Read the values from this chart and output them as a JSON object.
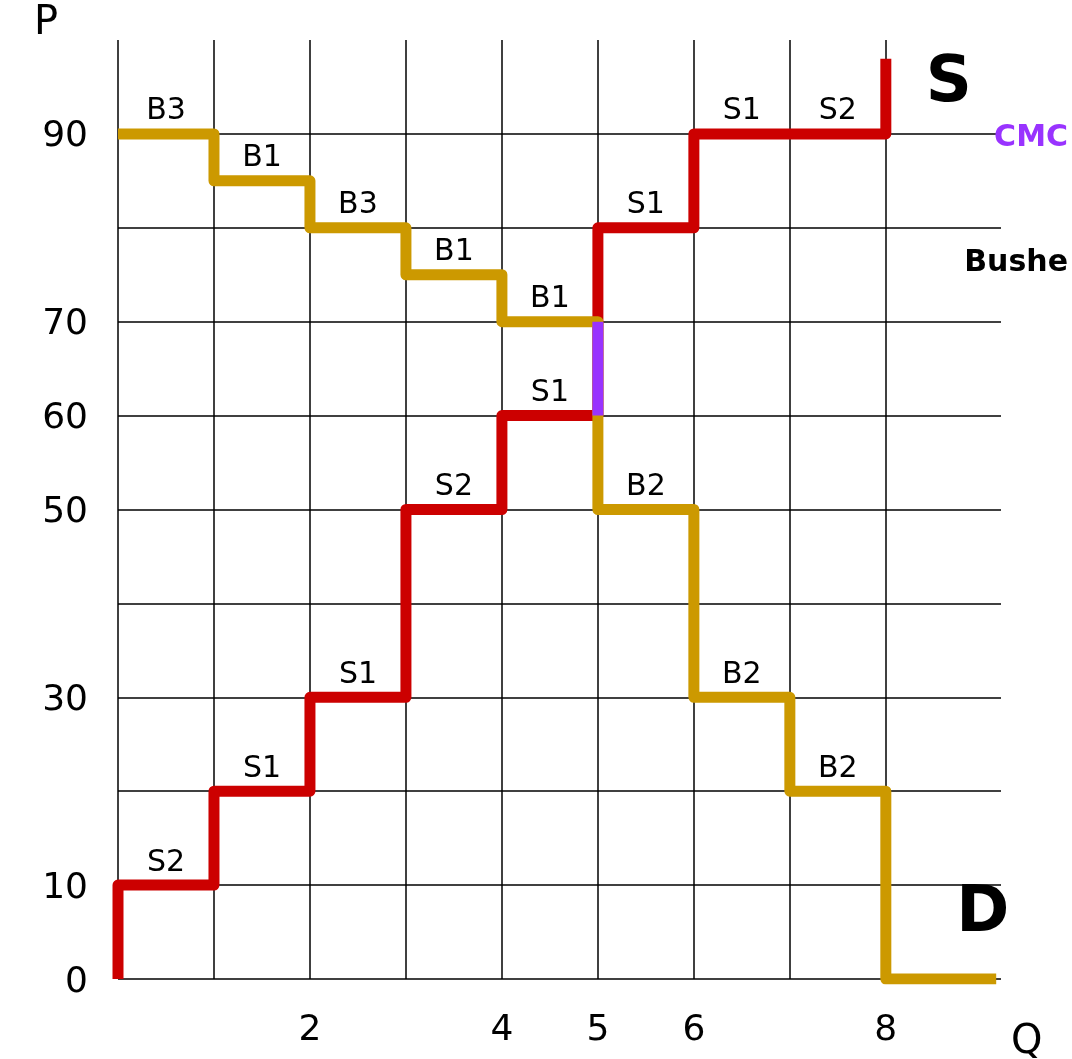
{
  "chart_data": {
    "type": "line",
    "xlabel": "Q",
    "ylabel": "P",
    "xlim": [
      0,
      9.2
    ],
    "ylim": [
      0,
      100
    ],
    "xticks": [
      {
        "value": 0,
        "label": null
      },
      {
        "value": 1,
        "label": null
      },
      2,
      {
        "value": 3,
        "label": null
      },
      4,
      5,
      6,
      {
        "value": 7,
        "label": null
      },
      8
    ],
    "yticks": [
      0,
      10,
      {
        "value": 20,
        "label": null
      },
      30,
      {
        "value": 40,
        "label": null
      },
      50,
      60,
      70,
      {
        "value": 80,
        "label": null
      },
      90
    ],
    "grid": true,
    "legend": false,
    "marker": "none",
    "line_style": "solid",
    "series": [
      {
        "name": "S",
        "color": "#cc0000",
        "x": [
          0,
          0,
          1,
          1,
          2,
          2,
          3,
          3,
          4,
          4,
          5,
          5,
          6,
          6,
          8,
          8
        ],
        "values": [
          0,
          10,
          10,
          20,
          20,
          30,
          30,
          50,
          50,
          60,
          60,
          80,
          80,
          90,
          90,
          98
        ]
      },
      {
        "name": "D",
        "color": "#cc9900",
        "x": [
          0,
          1,
          1,
          2,
          2,
          3,
          3,
          4,
          4,
          5,
          5,
          6,
          6,
          7,
          7,
          8,
          8,
          9.15
        ],
        "values": [
          90,
          90,
          85,
          85,
          80,
          80,
          75,
          75,
          70,
          70,
          50,
          50,
          30,
          30,
          20,
          20,
          0,
          0
        ]
      },
      {
        "color": "#9933ff",
        "x": [
          5,
          5
        ],
        "values": [
          60,
          70
        ]
      }
    ],
    "annotations": [
      {
        "text": "B3",
        "x": 0.5,
        "y": 90
      },
      {
        "text": "B1",
        "x": 1.5,
        "y": 85
      },
      {
        "text": "B3",
        "x": 2.5,
        "y": 80
      },
      {
        "text": "B1",
        "x": 3.5,
        "y": 75
      },
      {
        "text": "B1",
        "x": 4.5,
        "y": 70
      },
      {
        "text": "B2",
        "x": 5.5,
        "y": 50
      },
      {
        "text": "B2",
        "x": 6.5,
        "y": 30
      },
      {
        "text": "B2",
        "x": 7.5,
        "y": 20
      },
      {
        "text": "S2",
        "x": 0.5,
        "y": 10
      },
      {
        "text": "S1",
        "x": 1.5,
        "y": 20
      },
      {
        "text": "S1",
        "x": 2.5,
        "y": 30
      },
      {
        "text": "S2",
        "x": 3.5,
        "y": 50
      },
      {
        "text": "S1",
        "x": 4.5,
        "y": 60
      },
      {
        "text": "S1",
        "x": 5.5,
        "y": 80
      },
      {
        "text": "S1",
        "x": 6.5,
        "y": 90
      },
      {
        "text": "S2",
        "x": 7.5,
        "y": 90
      },
      "CMC",
      "Bushe"
    ]
  }
}
